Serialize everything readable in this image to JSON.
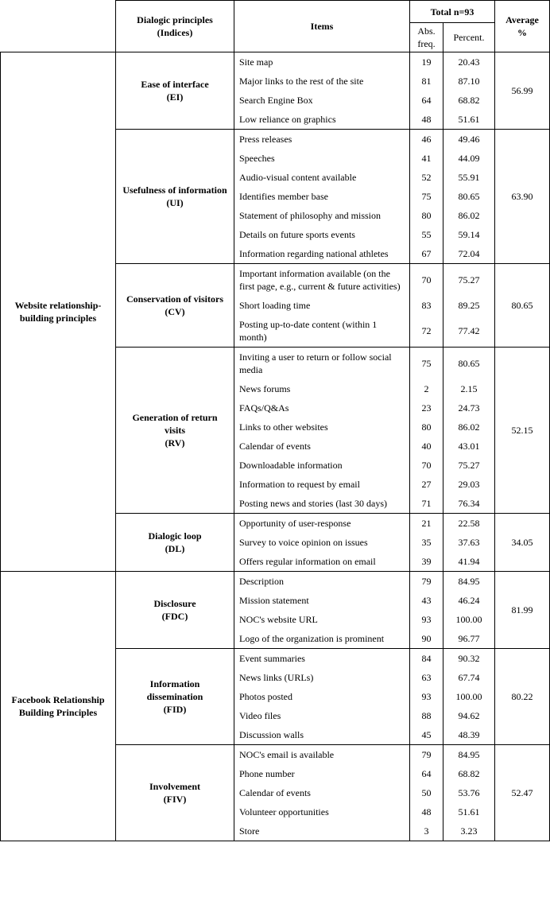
{
  "header": {
    "principles": [
      "Dialogic principles",
      "(Indices)"
    ],
    "items": "Items",
    "total": "Total n=93",
    "abs": "Abs. freq.",
    "percent": "Percent.",
    "average": [
      "Average",
      "%"
    ]
  },
  "groups": [
    {
      "name": "Website relationship-building principles",
      "principles": [
        {
          "name": "Ease of interface",
          "abbr": "(EI)",
          "average": "56.99",
          "items": [
            [
              "Site map",
              "19",
              "20.43"
            ],
            [
              "Major links to the rest of the site",
              "81",
              "87.10"
            ],
            [
              "Search Engine Box",
              "64",
              "68.82"
            ],
            [
              "Low reliance on graphics",
              "48",
              "51.61"
            ]
          ]
        },
        {
          "name": "Usefulness of information",
          "abbr": "(UI)",
          "average": "63.90",
          "items": [
            [
              "Press releases",
              "46",
              "49.46"
            ],
            [
              "Speeches",
              "41",
              "44.09"
            ],
            [
              "Audio-visual content available",
              "52",
              "55.91"
            ],
            [
              "Identifies member base",
              "75",
              "80.65"
            ],
            [
              "Statement of philosophy and mission",
              "80",
              "86.02"
            ],
            [
              "Details on future sports events",
              "55",
              "59.14"
            ],
            [
              "Information regarding national athletes",
              "67",
              "72.04"
            ]
          ]
        },
        {
          "name": "Conservation of visitors",
          "abbr": "(CV)",
          "average": "80.65",
          "items": [
            [
              "Important information available (on the first page, e.g., current & future activities)",
              "70",
              "75.27"
            ],
            [
              "Short loading time",
              "83",
              "89.25"
            ],
            [
              "Posting up-to-date content (within 1 month)",
              "72",
              "77.42"
            ]
          ]
        },
        {
          "name": "Generation of return visits",
          "abbr": "(RV)",
          "average": "52.15",
          "items": [
            [
              "Inviting a user to return or follow social media",
              "75",
              "80.65"
            ],
            [
              "News forums",
              "2",
              "2.15"
            ],
            [
              "FAQs/Q&As",
              "23",
              "24.73"
            ],
            [
              "Links to other websites",
              "80",
              "86.02"
            ],
            [
              "Calendar of events",
              "40",
              "43.01"
            ],
            [
              "Downloadable information",
              "70",
              "75.27"
            ],
            [
              "Information to request by email",
              "27",
              "29.03"
            ],
            [
              "Posting news and stories (last 30 days)",
              "71",
              "76.34"
            ]
          ]
        },
        {
          "name": "Dialogic loop",
          "abbr": "(DL)",
          "average": "34.05",
          "items": [
            [
              "Opportunity of user-response",
              "21",
              "22.58"
            ],
            [
              "Survey to voice opinion on issues",
              "35",
              "37.63"
            ],
            [
              "Offers regular information on email",
              "39",
              "41.94"
            ]
          ]
        }
      ]
    },
    {
      "name": "Facebook Relationship Building Principles",
      "principles": [
        {
          "name": "Disclosure",
          "abbr": "(FDC)",
          "average": "81.99",
          "items": [
            [
              "Description",
              "79",
              "84.95"
            ],
            [
              "Mission statement",
              "43",
              "46.24"
            ],
            [
              "NOC's website URL",
              "93",
              "100.00"
            ],
            [
              "Logo of the organization is prominent",
              "90",
              "96.77"
            ]
          ]
        },
        {
          "name": "Information dissemination",
          "abbr": "(FID)",
          "average": "80.22",
          "items": [
            [
              "Event summaries",
              "84",
              "90.32"
            ],
            [
              "News links (URLs)",
              "63",
              "67.74"
            ],
            [
              "Photos posted",
              "93",
              "100.00"
            ],
            [
              "Video files",
              "88",
              "94.62"
            ],
            [
              "Discussion walls",
              "45",
              "48.39"
            ]
          ]
        },
        {
          "name": "Involvement",
          "abbr": "(FIV)",
          "average": "52.47",
          "items": [
            [
              "NOC's email is available",
              "79",
              "84.95"
            ],
            [
              "Phone number",
              "64",
              "68.82"
            ],
            [
              "Calendar of events",
              "50",
              "53.76"
            ],
            [
              "Volunteer opportunities",
              "48",
              "51.61"
            ],
            [
              "Store",
              "3",
              "3.23"
            ]
          ]
        }
      ]
    }
  ]
}
